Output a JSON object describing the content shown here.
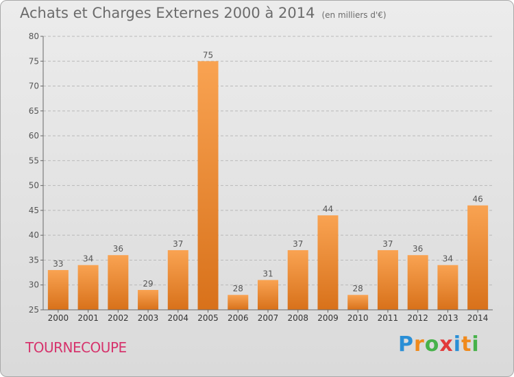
{
  "header": {
    "title": "Achats et Charges Externes 2000 à 2014",
    "unit": "(en milliers d'€)"
  },
  "footer": {
    "commune": "TOURNECOUPE",
    "logo_letters": [
      "P",
      "r",
      "o",
      "x",
      "i",
      "t",
      "i"
    ],
    "logo_colors": [
      "#2a8fd6",
      "#f08a1c",
      "#47b24a",
      "#e23a3a",
      "#2a8fd6",
      "#f08a1c",
      "#47b24a"
    ]
  },
  "chart_data": {
    "type": "bar",
    "categories": [
      "2000",
      "2001",
      "2002",
      "2003",
      "2004",
      "2005",
      "2006",
      "2007",
      "2008",
      "2009",
      "2010",
      "2011",
      "2012",
      "2013",
      "2014"
    ],
    "values": [
      33,
      34,
      36,
      29,
      37,
      75,
      28,
      31,
      37,
      44,
      28,
      37,
      36,
      34,
      46
    ],
    "title": "Achats et Charges Externes 2000 à 2014",
    "xlabel": "",
    "ylabel": "",
    "ylim": [
      25,
      80
    ],
    "yticks": [
      25,
      30,
      35,
      40,
      45,
      50,
      55,
      60,
      65,
      70,
      75,
      80
    ],
    "grid": true,
    "bar_color_top": "#f9a352",
    "bar_color_bottom": "#d8711a"
  }
}
